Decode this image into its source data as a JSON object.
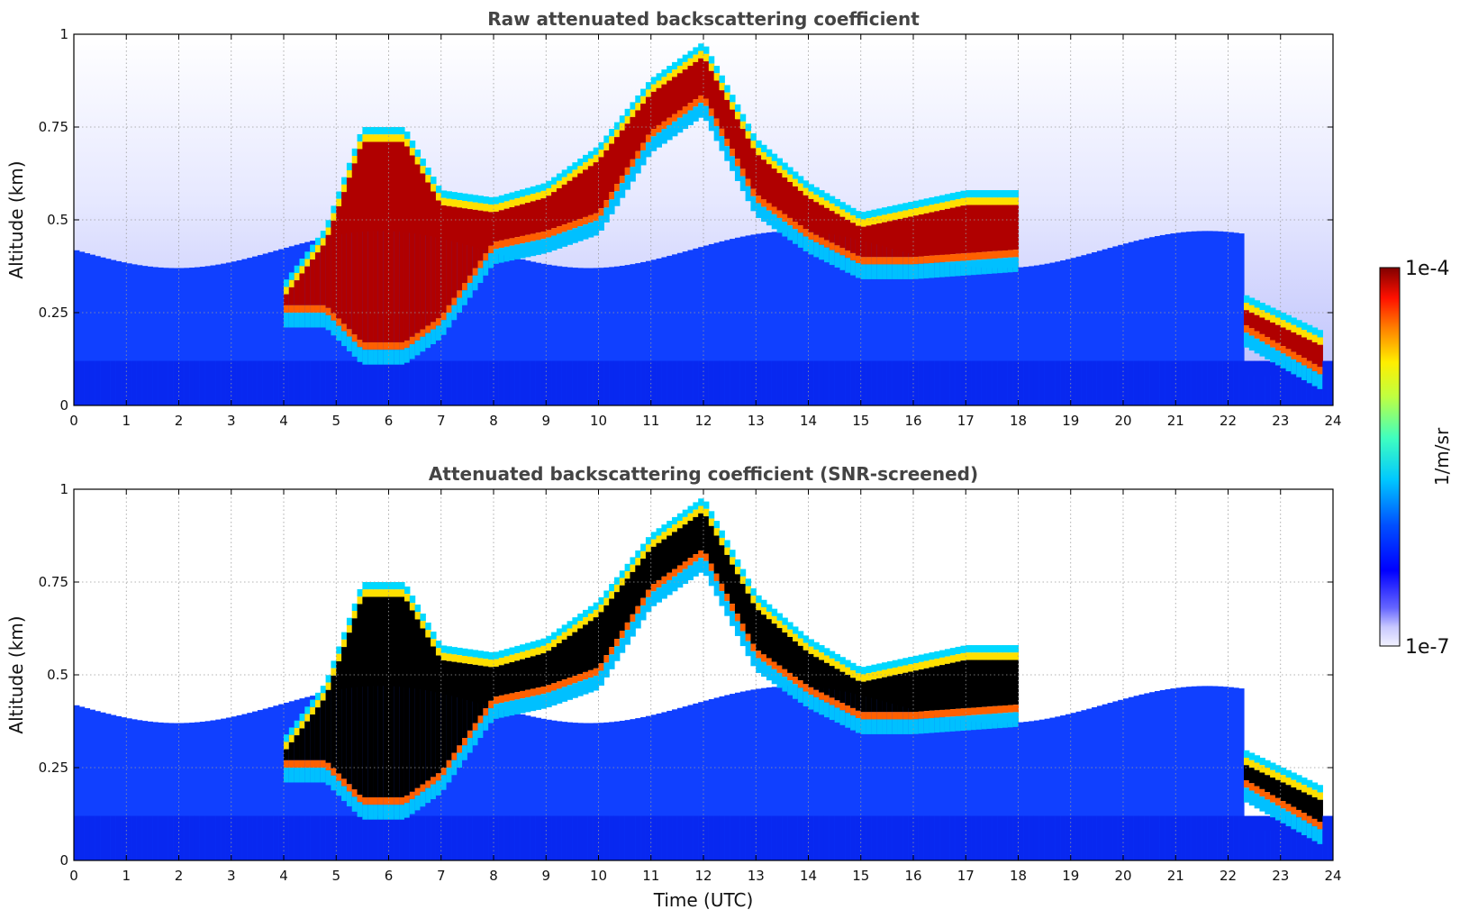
{
  "chart_data": [
    {
      "type": "heatmap",
      "title": "Raw attenuated backscattering coefficient",
      "xlabel": "",
      "ylabel": "Altitude (km)",
      "xlim": [
        0,
        24
      ],
      "ylim": [
        0,
        1
      ],
      "xticks": [
        "0",
        "1",
        "2",
        "3",
        "4",
        "5",
        "6",
        "7",
        "8",
        "9",
        "10",
        "11",
        "12",
        "13",
        "14",
        "15",
        "16",
        "17",
        "18",
        "19",
        "20",
        "21",
        "22",
        "23",
        "24"
      ],
      "yticks": [
        "0",
        "0.25",
        "0.5",
        "0.75",
        "1"
      ],
      "grid": true,
      "colorscale": "jet (log scale)",
      "layer_top_km": [
        {
          "t": 4.0,
          "top": 0.33,
          "bottom": 0.25
        },
        {
          "t": 4.8,
          "top": 0.48,
          "bottom": 0.25
        },
        {
          "t": 5.5,
          "top": 0.75,
          "bottom": 0.15
        },
        {
          "t": 6.3,
          "top": 0.75,
          "bottom": 0.15
        },
        {
          "t": 7.0,
          "top": 0.58,
          "bottom": 0.22
        },
        {
          "t": 8.0,
          "top": 0.56,
          "bottom": 0.42
        },
        {
          "t": 9.0,
          "top": 0.6,
          "bottom": 0.45
        },
        {
          "t": 10.0,
          "top": 0.7,
          "bottom": 0.5
        },
        {
          "t": 11.0,
          "top": 0.88,
          "bottom": 0.72
        },
        {
          "t": 12.0,
          "top": 0.98,
          "bottom": 0.82
        },
        {
          "t": 13.0,
          "top": 0.72,
          "bottom": 0.55
        },
        {
          "t": 14.0,
          "top": 0.6,
          "bottom": 0.45
        },
        {
          "t": 15.0,
          "top": 0.52,
          "bottom": 0.38
        },
        {
          "t": 16.0,
          "top": 0.55,
          "bottom": 0.38
        },
        {
          "t": 17.0,
          "top": 0.58,
          "bottom": 0.39
        },
        {
          "t": 18.0,
          "top": 0.58,
          "bottom": 0.4
        },
        {
          "t": 22.3,
          "top": 0.3,
          "bottom": 0.2
        },
        {
          "t": 23.8,
          "top": 0.2,
          "bottom": 0.08
        }
      ]
    },
    {
      "type": "heatmap",
      "title": "Attenuated backscattering coefficient (SNR-screened)",
      "xlabel": "Time (UTC)",
      "ylabel": "Altitude (km)",
      "xlim": [
        0,
        24
      ],
      "ylim": [
        0,
        1
      ],
      "xticks": [
        "0",
        "1",
        "2",
        "3",
        "4",
        "5",
        "6",
        "7",
        "8",
        "9",
        "10",
        "11",
        "12",
        "13",
        "14",
        "15",
        "16",
        "17",
        "18",
        "19",
        "20",
        "21",
        "22",
        "23",
        "24"
      ],
      "yticks": [
        "0",
        "0.25",
        "0.5",
        "0.75",
        "1"
      ],
      "grid": true,
      "colorscale": "jet (log scale), saturated values black"
    }
  ],
  "colorbar": {
    "label": "1/m/sr",
    "max_label": "1e-4",
    "min_label": "1e-7"
  }
}
